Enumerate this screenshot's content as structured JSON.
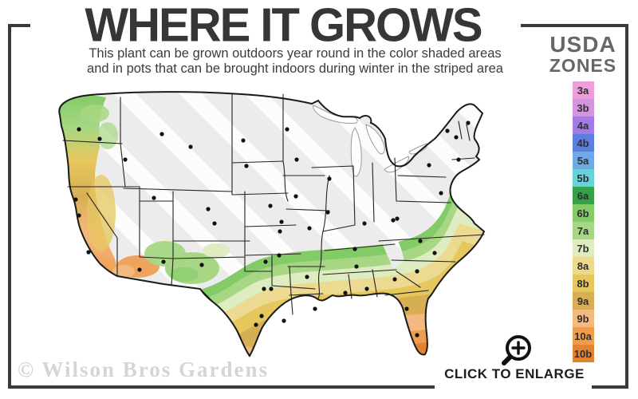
{
  "header": {
    "title": "WHERE IT GROWS",
    "subtitle_line1": "This plant can be grown outdoors year round in the color shaded areas",
    "subtitle_line2": "and in pots that can be brought indoors during winter in the striped area"
  },
  "legend": {
    "title_line1": "USDA",
    "title_line2": "ZONES",
    "zones": [
      {
        "label": "3a",
        "color": "#EC9FD8"
      },
      {
        "label": "3b",
        "color": "#D495DF"
      },
      {
        "label": "4a",
        "color": "#A47BE3"
      },
      {
        "label": "4b",
        "color": "#5C7FDD"
      },
      {
        "label": "5a",
        "color": "#71A9E5"
      },
      {
        "label": "5b",
        "color": "#67D2DC"
      },
      {
        "label": "6a",
        "color": "#35A148"
      },
      {
        "label": "6b",
        "color": "#82CB67"
      },
      {
        "label": "7a",
        "color": "#A7D784"
      },
      {
        "label": "7b",
        "color": "#DDEDC1"
      },
      {
        "label": "8a",
        "color": "#EBDA8F"
      },
      {
        "label": "8b",
        "color": "#E5C75D"
      },
      {
        "label": "9a",
        "color": "#D8AE55"
      },
      {
        "label": "9b",
        "color": "#F4B981"
      },
      {
        "label": "10a",
        "color": "#EE9C4D"
      },
      {
        "label": "10b",
        "color": "#E2832F"
      }
    ]
  },
  "map": {
    "base_color": "#ECECEC",
    "stripe_color": "#FFFFFF",
    "outline_color": "#1A1A1A",
    "state_line_color": "#222222",
    "dot_color": "#111111",
    "city_dots": [
      [
        44,
        50
      ],
      [
        70,
        62
      ],
      [
        102,
        88
      ],
      [
        148,
        56
      ],
      [
        184,
        72
      ],
      [
        250,
        64
      ],
      [
        254,
        96
      ],
      [
        40,
        138
      ],
      [
        44,
        158
      ],
      [
        56,
        204
      ],
      [
        138,
        136
      ],
      [
        206,
        150
      ],
      [
        214,
        168
      ],
      [
        120,
        226
      ],
      [
        150,
        216
      ],
      [
        198,
        220
      ],
      [
        284,
        146
      ],
      [
        296,
        178
      ],
      [
        278,
        216
      ],
      [
        295,
        208
      ],
      [
        276,
        250
      ],
      [
        285,
        250
      ],
      [
        273,
        284
      ],
      [
        266,
        295
      ],
      [
        301,
        290
      ],
      [
        305,
        50
      ],
      [
        317,
        88
      ],
      [
        358,
        112
      ],
      [
        316,
        134
      ],
      [
        298,
        166
      ],
      [
        333,
        174
      ],
      [
        356,
        154
      ],
      [
        402,
        168
      ],
      [
        438,
        164
      ],
      [
        483,
        95
      ],
      [
        506,
        52
      ],
      [
        517,
        60
      ],
      [
        532,
        42
      ],
      [
        520,
        88
      ],
      [
        498,
        130
      ],
      [
        443,
        162
      ],
      [
        472,
        190
      ],
      [
        490,
        205
      ],
      [
        468,
        228
      ],
      [
        440,
        238
      ],
      [
        390,
        200
      ],
      [
        392,
        222
      ],
      [
        405,
        250
      ],
      [
        378,
        255
      ],
      [
        340,
        275
      ],
      [
        330,
        235
      ],
      [
        455,
        275
      ],
      [
        468,
        308
      ]
    ]
  },
  "footer": {
    "watermark": "© Wilson Bros Gardens",
    "enlarge_label": "CLICK TO ENLARGE",
    "magnifier_icon": "magnifier-plus-icon"
  },
  "frame_color": "#3A3A3A"
}
